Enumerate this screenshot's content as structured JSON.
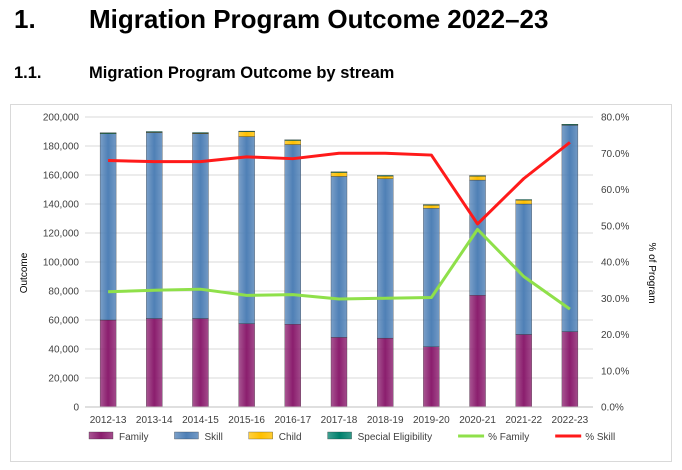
{
  "headings": {
    "h1_number": "1.",
    "h1_text": "Migration Program Outcome 2022–23",
    "h2_number": "1.1.",
    "h2_text": "Migration Program Outcome by stream"
  },
  "chart_data": {
    "type": "bar",
    "stacked": true,
    "title": "",
    "categories": [
      "2012-13",
      "2013-14",
      "2014-15",
      "2015-16",
      "2016-17",
      "2017-18",
      "2018-19",
      "2019-20",
      "2020-21",
      "2021-22",
      "2022-23"
    ],
    "ylabel": "Outcome",
    "y2label": "% of Program",
    "ylim": [
      0,
      200000
    ],
    "y2lim": [
      0,
      0.8
    ],
    "yticks": [
      "0",
      "20,000",
      "40,000",
      "60,000",
      "80,000",
      "100,000",
      "120,000",
      "140,000",
      "160,000",
      "180,000",
      "200,000"
    ],
    "y2ticks": [
      "0.0%",
      "10.0%",
      "20.0%",
      "30.0%",
      "40.0%",
      "50.0%",
      "60.0%",
      "70.0%",
      "80.0%"
    ],
    "series": [
      {
        "name": "Family",
        "kind": "bar",
        "color": "#8b1e6e",
        "values": [
          60000,
          61000,
          61000,
          57500,
          57000,
          48000,
          47500,
          41500,
          77000,
          50000,
          52000
        ]
      },
      {
        "name": "Skill",
        "kind": "bar",
        "color": "#4f80b6",
        "values": [
          128500,
          128500,
          127500,
          129000,
          124000,
          111000,
          110000,
          95500,
          79500,
          90000,
          142500
        ]
      },
      {
        "name": "Child",
        "kind": "bar",
        "color": "#ffc000",
        "values": [
          500,
          300,
          500,
          3500,
          3000,
          3000,
          2000,
          2500,
          3000,
          3000,
          400
        ]
      },
      {
        "name": "Special Eligibility",
        "kind": "bar",
        "color": "#00806c",
        "values": [
          100,
          200,
          300,
          300,
          300,
          200,
          200,
          100,
          100,
          100,
          100
        ]
      },
      {
        "name": "% Family",
        "kind": "line",
        "axis": "right",
        "color": "#8fe04a",
        "values": [
          0.318,
          0.322,
          0.325,
          0.308,
          0.31,
          0.298,
          0.3,
          0.302,
          0.49,
          0.36,
          0.27
        ]
      },
      {
        "name": "% Skill",
        "kind": "line",
        "axis": "right",
        "color": "#ff1a1a",
        "values": [
          0.68,
          0.677,
          0.677,
          0.69,
          0.685,
          0.7,
          0.7,
          0.695,
          0.505,
          0.63,
          0.73
        ]
      }
    ],
    "grid": true,
    "legend": "bottom"
  }
}
